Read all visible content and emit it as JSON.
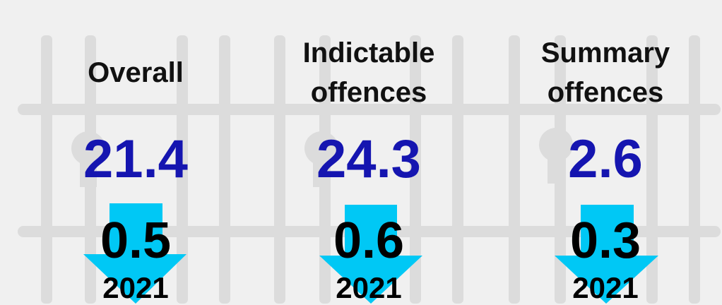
{
  "panels": [
    {
      "label": "Overall",
      "value": 21.4,
      "change": 0.5,
      "year": 2021
    },
    {
      "label": "Indictable offences",
      "value": 24.3,
      "change": 0.6,
      "year": 2021
    },
    {
      "label": "Summary offences",
      "value": 2.6,
      "change": 0.3,
      "year": 2021
    }
  ]
}
